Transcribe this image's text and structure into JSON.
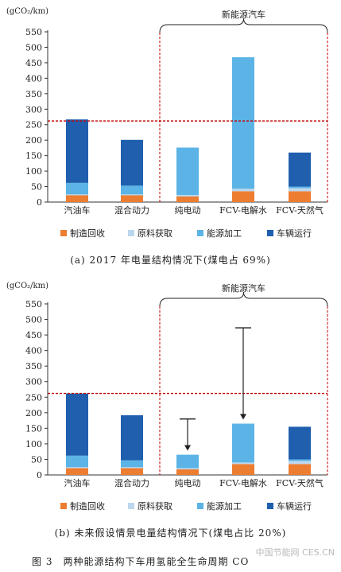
{
  "colors": {
    "manufacture": "#ed7d31",
    "raw": "#bdd7ee",
    "energy": "#5bb4e5",
    "operation": "#1f5fae",
    "refline": "#c00000",
    "ev_box": "#c00000"
  },
  "legend": [
    "制造回收",
    "原料获取",
    "能源加工",
    "车辆运行"
  ],
  "chart_data": [
    {
      "type": "bar",
      "stacked": true,
      "title": "",
      "ylabel": "(gCO₂/km)",
      "ylim": [
        0,
        550
      ],
      "yticks": [
        0,
        50,
        100,
        150,
        200,
        250,
        300,
        350,
        400,
        450,
        500,
        550
      ],
      "categories": [
        "汽油车",
        "混合动力",
        "纯电动",
        "FCV-电解水",
        "FCV-天然气"
      ],
      "series": [
        {
          "name": "制造回收",
          "values": [
            22,
            22,
            18,
            35,
            35
          ]
        },
        {
          "name": "原料获取",
          "values": [
            3,
            3,
            5,
            8,
            10
          ]
        },
        {
          "name": "能源加工",
          "values": [
            37,
            28,
            153,
            425,
            5
          ]
        },
        {
          "name": "车辆运行",
          "values": [
            205,
            148,
            0,
            0,
            110
          ]
        }
      ],
      "reference_line": 262,
      "group_label": "新能源汽车",
      "caption": "(a) 2017 年电量结构情况下(煤电占 69%)"
    },
    {
      "type": "bar",
      "stacked": true,
      "title": "",
      "ylabel": "(gCO₂/km)",
      "ylim": [
        0,
        550
      ],
      "yticks": [
        0,
        50,
        100,
        150,
        200,
        250,
        300,
        350,
        400,
        450,
        500,
        550
      ],
      "categories": [
        "汽油车",
        "混合动力",
        "纯电动",
        "FCV-电解水",
        "FCV-天然气"
      ],
      "series": [
        {
          "name": "制造回收",
          "values": [
            22,
            22,
            18,
            35,
            35
          ]
        },
        {
          "name": "原料获取",
          "values": [
            3,
            3,
            4,
            5,
            10
          ]
        },
        {
          "name": "能源加工",
          "values": [
            37,
            22,
            43,
            125,
            5
          ]
        },
        {
          "name": "车辆运行",
          "values": [
            200,
            145,
            0,
            0,
            105
          ]
        }
      ],
      "reference_line": 262,
      "group_label": "新能源汽车",
      "arrows": [
        {
          "category": "纯电动",
          "from": 180,
          "to": 78
        },
        {
          "category": "FCV-电解水",
          "from": 473,
          "to": 178
        }
      ],
      "caption": "(b) 未来假设情景电量结构情况下(煤电占比 20%)"
    }
  ],
  "figure_caption": "图 3　两种能源结构下车用氢能全生命周期 CO",
  "watermark": "中国节能网 CES.CN"
}
